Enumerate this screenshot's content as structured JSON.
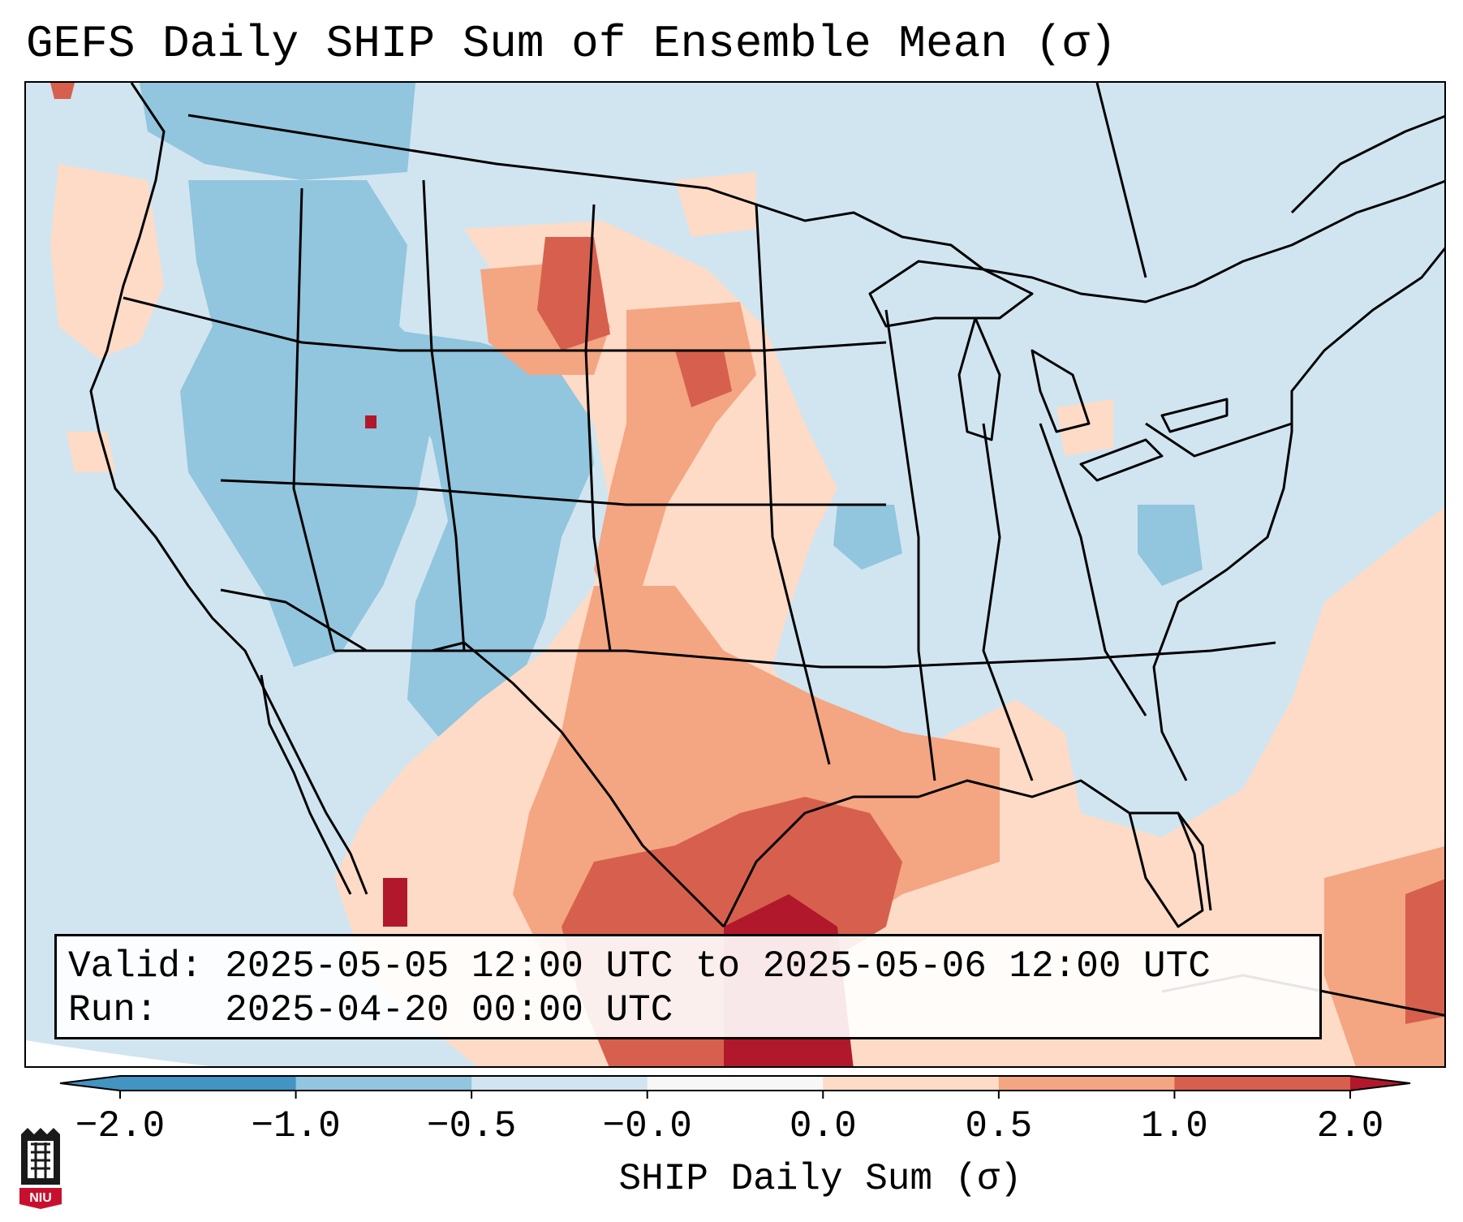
{
  "title": "GEFS Daily SHIP Sum of Ensemble Mean (σ)",
  "info": {
    "valid_label": "Valid:",
    "valid_value": "2025-05-05 12:00 UTC to 2025-05-06 12:00 UTC",
    "run_label": "Run:",
    "run_value": "2025-04-20 00:00 UTC"
  },
  "colorbar": {
    "label": "SHIP Daily Sum (σ)",
    "ticks": [
      "−2.0",
      "−1.0",
      "−0.5",
      "−0.0",
      "0.0",
      "0.5",
      "1.0",
      "2.0"
    ],
    "colors": [
      "#4393c3",
      "#92c5de",
      "#d1e5f0",
      "#f7f7f7",
      "#fddbc7",
      "#f4a582",
      "#d6604d",
      "#b2182b"
    ],
    "extend": "both"
  },
  "logo": {
    "text": "NIU",
    "colors": {
      "red": "#c8102e",
      "black": "#1a1a1a"
    }
  },
  "map": {
    "projection": "Lambert conformal over North America",
    "background_color": "#d1e5f0",
    "borders_color": "#000000"
  }
}
